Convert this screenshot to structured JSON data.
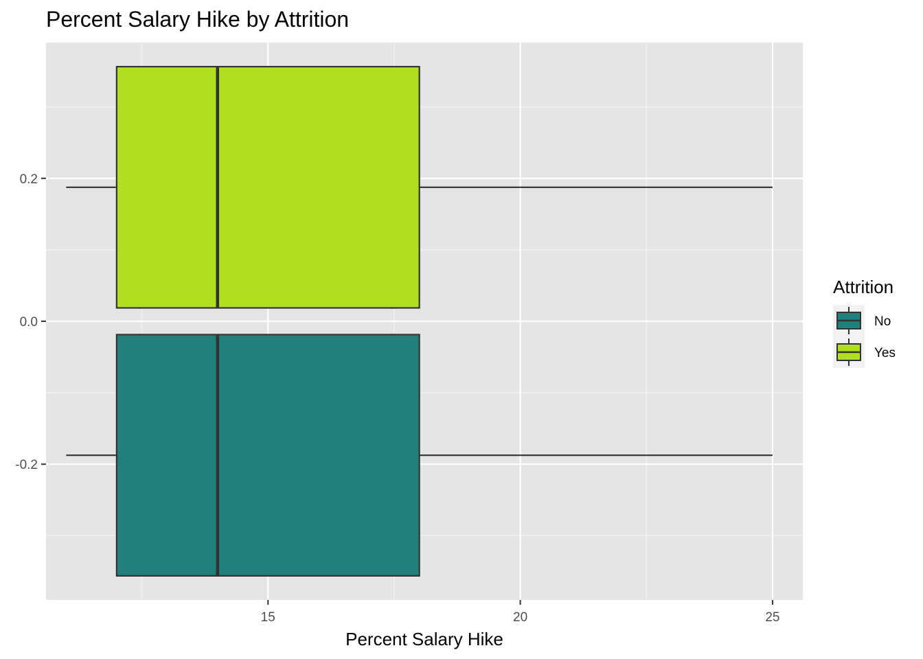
{
  "chart_data": {
    "type": "boxplot",
    "title": "Percent Salary Hike by Attrition",
    "xlabel": "Percent Salary Hike",
    "ylabel": "",
    "xlim": [
      10.6,
      25.6
    ],
    "ylim": [
      -0.39,
      0.39
    ],
    "x_ticks": [
      15,
      20,
      25
    ],
    "y_ticks": [
      -0.2,
      0.0,
      0.2
    ],
    "y_tick_labels": [
      "-0.2",
      "0.0",
      "0.2"
    ],
    "grid": true,
    "legend": {
      "title": "Attrition",
      "position": "right",
      "entries": [
        "No",
        "Yes"
      ]
    },
    "series": [
      {
        "name": "No",
        "color": "#21807B",
        "y_center": -0.1875,
        "y_span": [
          -0.3563,
          -0.0187
        ],
        "min": 11,
        "q1": 12,
        "median": 14,
        "q3": 18,
        "max": 25
      },
      {
        "name": "Yes",
        "color": "#AFDF20",
        "y_center": 0.1875,
        "y_span": [
          0.0187,
          0.3563
        ],
        "min": 11,
        "q1": 12,
        "median": 14,
        "q3": 18,
        "max": 25
      }
    ]
  }
}
